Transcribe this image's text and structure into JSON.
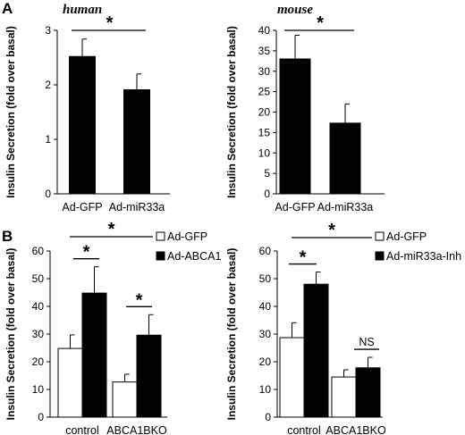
{
  "panels": {
    "A": {
      "letter": "A"
    },
    "B": {
      "letter": "B"
    }
  },
  "chart_data": [
    {
      "id": "a-human",
      "type": "bar",
      "title": "human",
      "ylabel": "Insulin Secretion (fold over basal)",
      "ylim": [
        0,
        3
      ],
      "yticks": [
        "0",
        "1",
        "2",
        "3"
      ],
      "tick_values": [
        0,
        1,
        2,
        3
      ],
      "categories": [
        "Ad-GFP",
        "Ad-miR33a"
      ],
      "series": [
        {
          "values": [
            2.52,
            1.91
          ],
          "errors": [
            0.32,
            0.29
          ],
          "color": "#000000"
        }
      ],
      "annotations": [
        {
          "type": "bracket",
          "label": "*",
          "from": "Ad-GFP",
          "to": "Ad-miR33a"
        }
      ]
    },
    {
      "id": "a-mouse",
      "type": "bar",
      "title": "mouse",
      "ylabel": "Insulin Secretion (fold over basal)",
      "ylim": [
        0,
        40
      ],
      "yticks": [
        "0",
        "5",
        "10",
        "15",
        "20",
        "25",
        "30",
        "35",
        "40"
      ],
      "tick_values": [
        0,
        5,
        10,
        15,
        20,
        25,
        30,
        35,
        40
      ],
      "categories": [
        "Ad-GFP",
        "Ad-miR33a"
      ],
      "series": [
        {
          "values": [
            33,
            17.3
          ],
          "errors": [
            5.8,
            4.7
          ],
          "color": "#000000"
        }
      ],
      "annotations": [
        {
          "type": "bracket",
          "label": "*",
          "from": "Ad-GFP",
          "to": "Ad-miR33a"
        }
      ]
    },
    {
      "id": "b-left",
      "type": "bar",
      "title": "",
      "ylabel": "Insulin Secretion (fold over basal)",
      "ylim": [
        0,
        60
      ],
      "yticks": [
        "0",
        "10",
        "20",
        "30",
        "40",
        "50",
        "60"
      ],
      "tick_values": [
        0,
        10,
        20,
        30,
        40,
        50,
        60
      ],
      "categories": [
        "control",
        "ABCA1BKO"
      ],
      "legend_position": "top-right",
      "series": [
        {
          "name": "Ad-GFP",
          "values": [
            24.8,
            12.7
          ],
          "errors": [
            4.9,
            2.8
          ],
          "color": "#ffffff"
        },
        {
          "name": "Ad-ABCA1",
          "values": [
            44.8,
            29.6
          ],
          "errors": [
            9.5,
            7.4
          ],
          "color": "#000000"
        }
      ],
      "annotations": [
        {
          "type": "pair",
          "label": "*",
          "group": "control"
        },
        {
          "type": "pair",
          "label": "*",
          "group": "ABCA1BKO"
        },
        {
          "type": "group-line",
          "label": "*"
        }
      ]
    },
    {
      "id": "b-right",
      "type": "bar",
      "title": "",
      "ylabel": "Insulin Secretion (fold over basal)",
      "ylim": [
        0,
        60
      ],
      "yticks": [
        "0",
        "10",
        "20",
        "30",
        "40",
        "50",
        "60"
      ],
      "tick_values": [
        0,
        10,
        20,
        30,
        40,
        50,
        60
      ],
      "categories": [
        "control",
        "ABCA1BKO"
      ],
      "legend_position": "top-right",
      "series": [
        {
          "name": "Ad-GFP",
          "values": [
            28.7,
            14.5
          ],
          "errors": [
            5.4,
            2.6
          ],
          "color": "#ffffff"
        },
        {
          "name": "Ad-miR33a-Inh",
          "values": [
            48,
            17.8
          ],
          "errors": [
            4.4,
            3.8
          ],
          "color": "#000000"
        }
      ],
      "annotations": [
        {
          "type": "pair",
          "label": "*",
          "group": "control"
        },
        {
          "type": "pair",
          "label": "NS",
          "group": "ABCA1BKO"
        },
        {
          "type": "group-line",
          "label": "*"
        }
      ]
    }
  ]
}
